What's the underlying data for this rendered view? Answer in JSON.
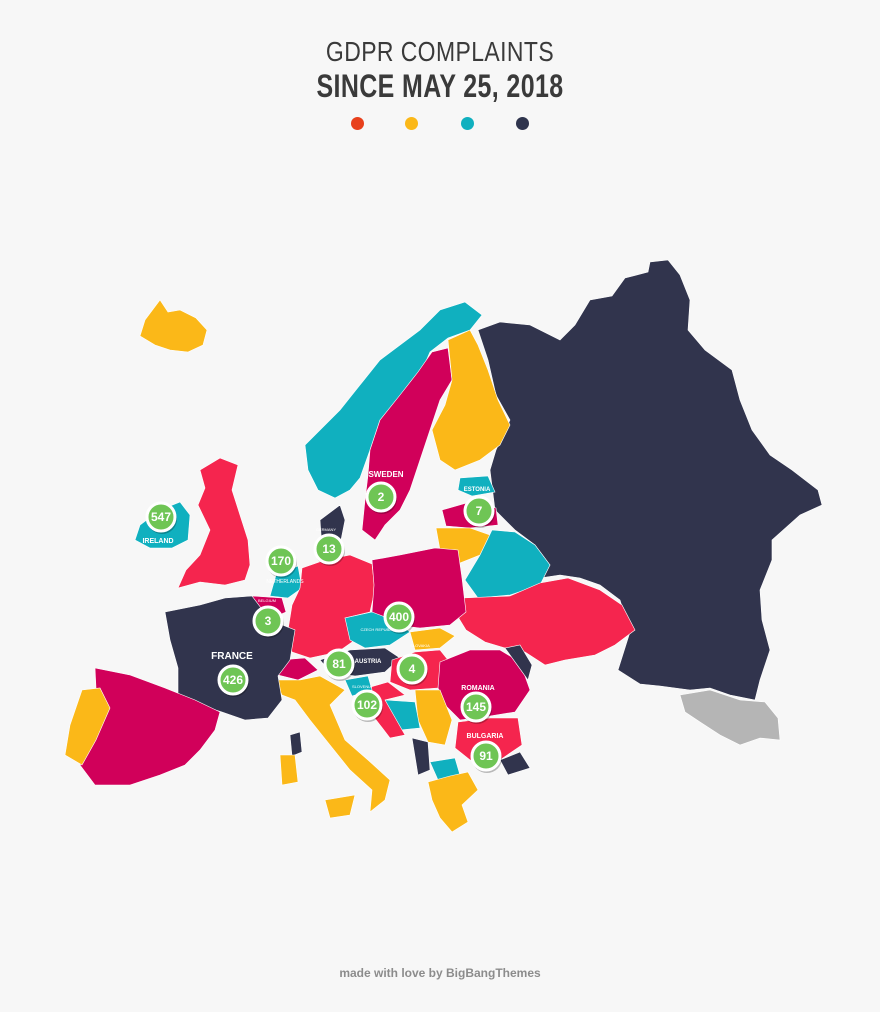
{
  "header": {
    "title_line1": "GDPR COMPLAINTS",
    "title_line2": "SINCE MAY 25, 2018"
  },
  "legend": {
    "colors": [
      "#e8401c",
      "#fbb818",
      "#10b0bf",
      "#2f344d"
    ]
  },
  "palette": {
    "red": "#f5254e",
    "magenta": "#d1005a",
    "yellow": "#fbb818",
    "teal": "#10b0bf",
    "navy": "#31344d",
    "grey": "#b5b5b5",
    "marker_fill": "#6fc555",
    "marker_stroke": "#ffffff"
  },
  "countries": {
    "sweden": "SWEDEN",
    "estonia": "ESTONIA",
    "ireland": "IRELAND",
    "netherlands": "NETHERLANDS",
    "germany": "GERMANY",
    "belgium": "BELGIUM",
    "czech": "CZECH REPUBLIC",
    "france": "FRANCE",
    "austria": "AUSTRIA",
    "slovakia": "SLOVAKIA",
    "slovenia": "SLOVENIA",
    "romania": "ROMANIA",
    "bulgaria": "BULGARIA"
  },
  "markers": {
    "sweden": "2",
    "estonia": "7",
    "ireland": "547",
    "netherlands": "170",
    "denmark": "13",
    "belgium": "3",
    "czech": "400",
    "france": "426",
    "austria": "81",
    "hungary": "4",
    "romania": "145",
    "slovenia": "102",
    "bulgaria": "91"
  },
  "footer": {
    "text": "made with love by BigBangThemes"
  }
}
